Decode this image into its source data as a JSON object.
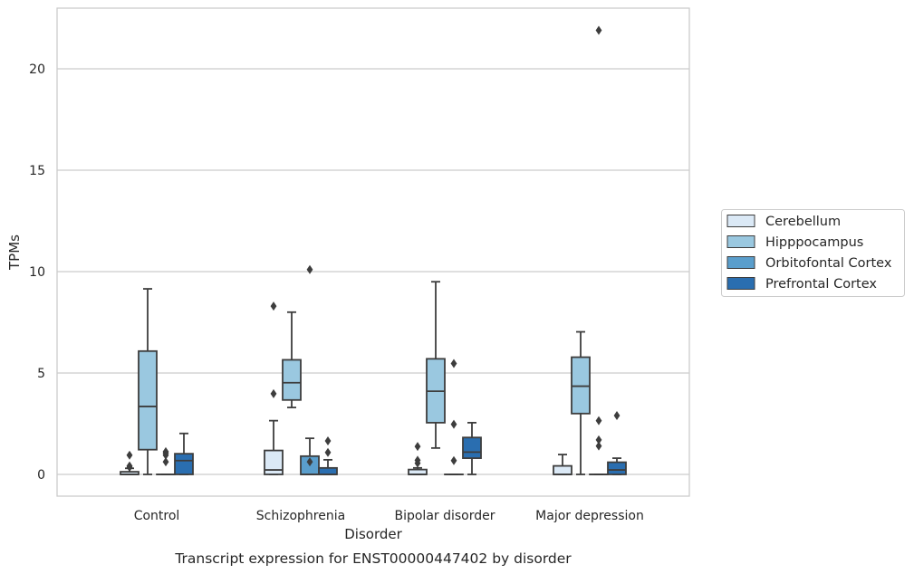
{
  "chart_data": {
    "type": "box",
    "caption": "Transcript expression for ENST00000447402 by disorder",
    "xlabel": "Disorder",
    "ylabel": "TPMs",
    "ylim": [
      -1.05,
      23.1
    ],
    "yticks": [
      0,
      5,
      10,
      15,
      20
    ],
    "grid": "horizontal",
    "legend_position": "right",
    "categories": [
      "Control",
      "Schizophrenia",
      "Bipolar disorder",
      "Major depression"
    ],
    "series": [
      {
        "name": "Cerebellum",
        "color": "#dbe9f6",
        "boxes": [
          {
            "q1": 0.0,
            "median": 0.0,
            "q3": 0.13,
            "whisker_low": 0.0,
            "whisker_high": 0.3,
            "outliers": [
              0.35,
              0.42,
              0.95
            ]
          },
          {
            "q1": 0.0,
            "median": 0.22,
            "q3": 1.18,
            "whisker_low": 0.0,
            "whisker_high": 2.65,
            "outliers": [
              3.98,
              8.3
            ]
          },
          {
            "q1": 0.0,
            "median": 0.0,
            "q3": 0.24,
            "whisker_low": 0.0,
            "whisker_high": 0.32,
            "outliers": [
              0.55,
              0.7,
              1.38
            ]
          },
          {
            "q1": 0.0,
            "median": 0.0,
            "q3": 0.42,
            "whisker_low": 0.0,
            "whisker_high": 0.98,
            "outliers": []
          }
        ]
      },
      {
        "name": "Hipppocampus",
        "color": "#9ac8e0",
        "boxes": [
          {
            "q1": 1.22,
            "median": 3.35,
            "q3": 6.08,
            "whisker_low": 0.0,
            "whisker_high": 9.15,
            "outliers": []
          },
          {
            "q1": 3.67,
            "median": 4.52,
            "q3": 5.65,
            "whisker_low": 3.3,
            "whisker_high": 8.0,
            "outliers": []
          },
          {
            "q1": 2.55,
            "median": 4.1,
            "q3": 5.7,
            "whisker_low": 1.3,
            "whisker_high": 9.5,
            "outliers": []
          },
          {
            "q1": 3.0,
            "median": 4.35,
            "q3": 5.78,
            "whisker_low": 0.0,
            "whisker_high": 7.03,
            "outliers": []
          }
        ]
      },
      {
        "name": "Orbitofontal Cortex",
        "color": "#5a9ecc",
        "boxes": [
          {
            "q1": 0.0,
            "median": 0.0,
            "q3": 0.0,
            "whisker_low": 0.0,
            "whisker_high": 0.0,
            "outliers": [
              0.62,
              0.95,
              1.05,
              1.12
            ]
          },
          {
            "q1": 0.0,
            "median": 0.0,
            "q3": 0.9,
            "whisker_low": 0.0,
            "whisker_high": 1.78,
            "outliers": [
              0.62,
              10.1
            ]
          },
          {
            "q1": 0.0,
            "median": 0.0,
            "q3": 0.0,
            "whisker_low": 0.0,
            "whisker_high": 0.0,
            "outliers": [
              0.68,
              2.47,
              5.47
            ]
          },
          {
            "q1": 0.0,
            "median": 0.0,
            "q3": 0.0,
            "whisker_low": 0.0,
            "whisker_high": 0.0,
            "outliers": [
              1.4,
              1.7,
              2.65,
              21.9
            ]
          }
        ]
      },
      {
        "name": "Prefrontal Cortex",
        "color": "#2a6eb0",
        "boxes": [
          {
            "q1": 0.0,
            "median": 0.68,
            "q3": 1.02,
            "whisker_low": 0.0,
            "whisker_high": 2.02,
            "outliers": []
          },
          {
            "q1": 0.0,
            "median": 0.0,
            "q3": 0.32,
            "whisker_low": 0.0,
            "whisker_high": 0.72,
            "outliers": [
              1.08,
              1.65
            ]
          },
          {
            "q1": 0.8,
            "median": 1.1,
            "q3": 1.82,
            "whisker_low": 0.0,
            "whisker_high": 2.55,
            "outliers": []
          },
          {
            "q1": 0.0,
            "median": 0.22,
            "q3": 0.6,
            "whisker_low": 0.0,
            "whisker_high": 0.8,
            "outliers": [
              2.9
            ]
          }
        ]
      }
    ]
  }
}
